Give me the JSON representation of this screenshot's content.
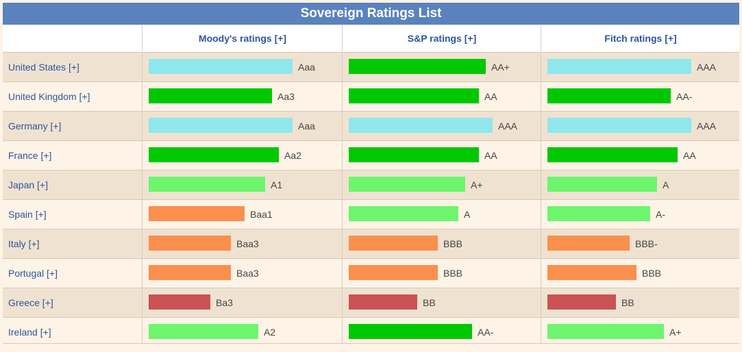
{
  "title": "Sovereign Ratings List",
  "columns": [
    "Moody's ratings [+]",
    "S&P ratings [+]",
    "Fitch ratings [+]"
  ],
  "colors": {
    "aaa": "#8fe8ec",
    "aa": "#00c800",
    "a": "#6ef56e",
    "bbb": "#fb8f4d",
    "bb": "#cb5252"
  },
  "chart_data": {
    "type": "bar",
    "title": "Sovereign Ratings List",
    "categories": [
      "United States [+]",
      "United Kingdom [+]",
      "Germany [+]",
      "France [+]",
      "Japan [+]",
      "Spain [+]",
      "Italy [+]",
      "Portugal [+]",
      "Greece [+]",
      "Ireland [+]"
    ],
    "series": [
      {
        "name": "Moody's ratings [+]",
        "ratings": [
          "Aaa",
          "Aa3",
          "Aaa",
          "Aa2",
          "A1",
          "Baa1",
          "Baa3",
          "Baa3",
          "Ba3",
          "A2"
        ],
        "values": [
          21,
          18,
          21,
          19,
          17,
          14,
          12,
          12,
          9,
          16
        ],
        "tiers": [
          "aaa",
          "aa",
          "aaa",
          "aa",
          "a",
          "bbb",
          "bbb",
          "bbb",
          "bb",
          "a"
        ]
      },
      {
        "name": "S&P ratings [+]",
        "ratings": [
          "AA+",
          "AA",
          "AAA",
          "AA",
          "A+",
          "A",
          "BBB",
          "BBB",
          "BB",
          "AA-"
        ],
        "values": [
          20,
          19,
          21,
          19,
          17,
          16,
          13,
          13,
          10,
          18
        ],
        "tiers": [
          "aa",
          "aa",
          "aaa",
          "aa",
          "a",
          "a",
          "bbb",
          "bbb",
          "bb",
          "aa"
        ]
      },
      {
        "name": "Fitch ratings [+]",
        "ratings": [
          "AAA",
          "AA-",
          "AAA",
          "AA",
          "A",
          "A-",
          "BBB-",
          "BBB",
          "BB",
          "A+"
        ],
        "values": [
          21,
          18,
          21,
          19,
          16,
          15,
          12,
          13,
          10,
          17
        ],
        "tiers": [
          "aaa",
          "aa",
          "aaa",
          "aa",
          "a",
          "a",
          "bbb",
          "bbb",
          "bb",
          "a"
        ]
      }
    ]
  }
}
